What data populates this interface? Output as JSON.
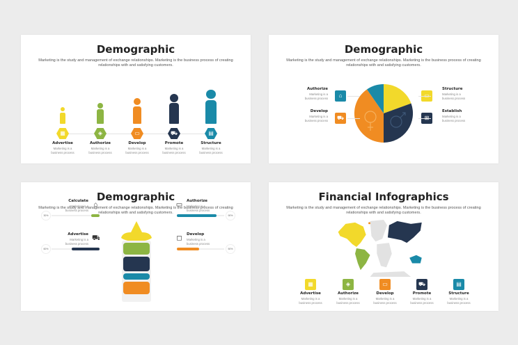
{
  "colors": {
    "yellow": "#f2d92b",
    "green": "#8db543",
    "orange": "#f08c22",
    "navy": "#253650",
    "teal": "#1a8aa8"
  },
  "description": "Marketing is the study and management of exchange relationships. Marketing is the business process of creating relationships with and satisfying customers.",
  "item_desc": "Marketing is a business process",
  "slides": [
    {
      "title": "Demographic",
      "items": [
        {
          "label": "Advertise",
          "icon": "calendar-icon",
          "color": "yellow"
        },
        {
          "label": "Authorize",
          "icon": "tag-icon",
          "color": "green"
        },
        {
          "label": "Develop",
          "icon": "money-icon",
          "color": "orange"
        },
        {
          "label": "Promote",
          "icon": "cart-icon",
          "color": "navy"
        },
        {
          "label": "Structure",
          "icon": "wallet-icon",
          "color": "teal"
        }
      ]
    },
    {
      "title": "Demographic",
      "items": [
        {
          "label": "Authorize",
          "icon": "store-icon",
          "color": "teal"
        },
        {
          "label": "Develop",
          "icon": "truck-icon",
          "color": "orange"
        },
        {
          "label": "Structure",
          "icon": "card-icon",
          "color": "yellow"
        },
        {
          "label": "Establish",
          "icon": "gift-icon",
          "color": "navy"
        }
      ]
    },
    {
      "title": "Demographic",
      "items": [
        {
          "label": "Calculate",
          "icon": "store-icon",
          "percent": "30%",
          "value": 30,
          "color": "green"
        },
        {
          "label": "Advertise",
          "icon": "truck-icon",
          "percent": "60%",
          "value": 60,
          "color": "navy"
        },
        {
          "label": "Authorize",
          "icon": "card-icon",
          "percent": "90%",
          "value": 90,
          "color": "teal"
        },
        {
          "label": "Develop",
          "icon": "bag-icon",
          "percent": "50%",
          "value": 50,
          "color": "orange"
        }
      ]
    },
    {
      "title": "Financial Infographics",
      "items": [
        {
          "label": "Advertise",
          "icon": "calendar-icon",
          "color": "yellow"
        },
        {
          "label": "Authorize",
          "icon": "tag-icon",
          "color": "green"
        },
        {
          "label": "Develop",
          "icon": "money-icon",
          "color": "orange"
        },
        {
          "label": "Promote",
          "icon": "cart-icon",
          "color": "navy"
        },
        {
          "label": "Structure",
          "icon": "wallet-icon",
          "color": "teal"
        }
      ]
    }
  ]
}
